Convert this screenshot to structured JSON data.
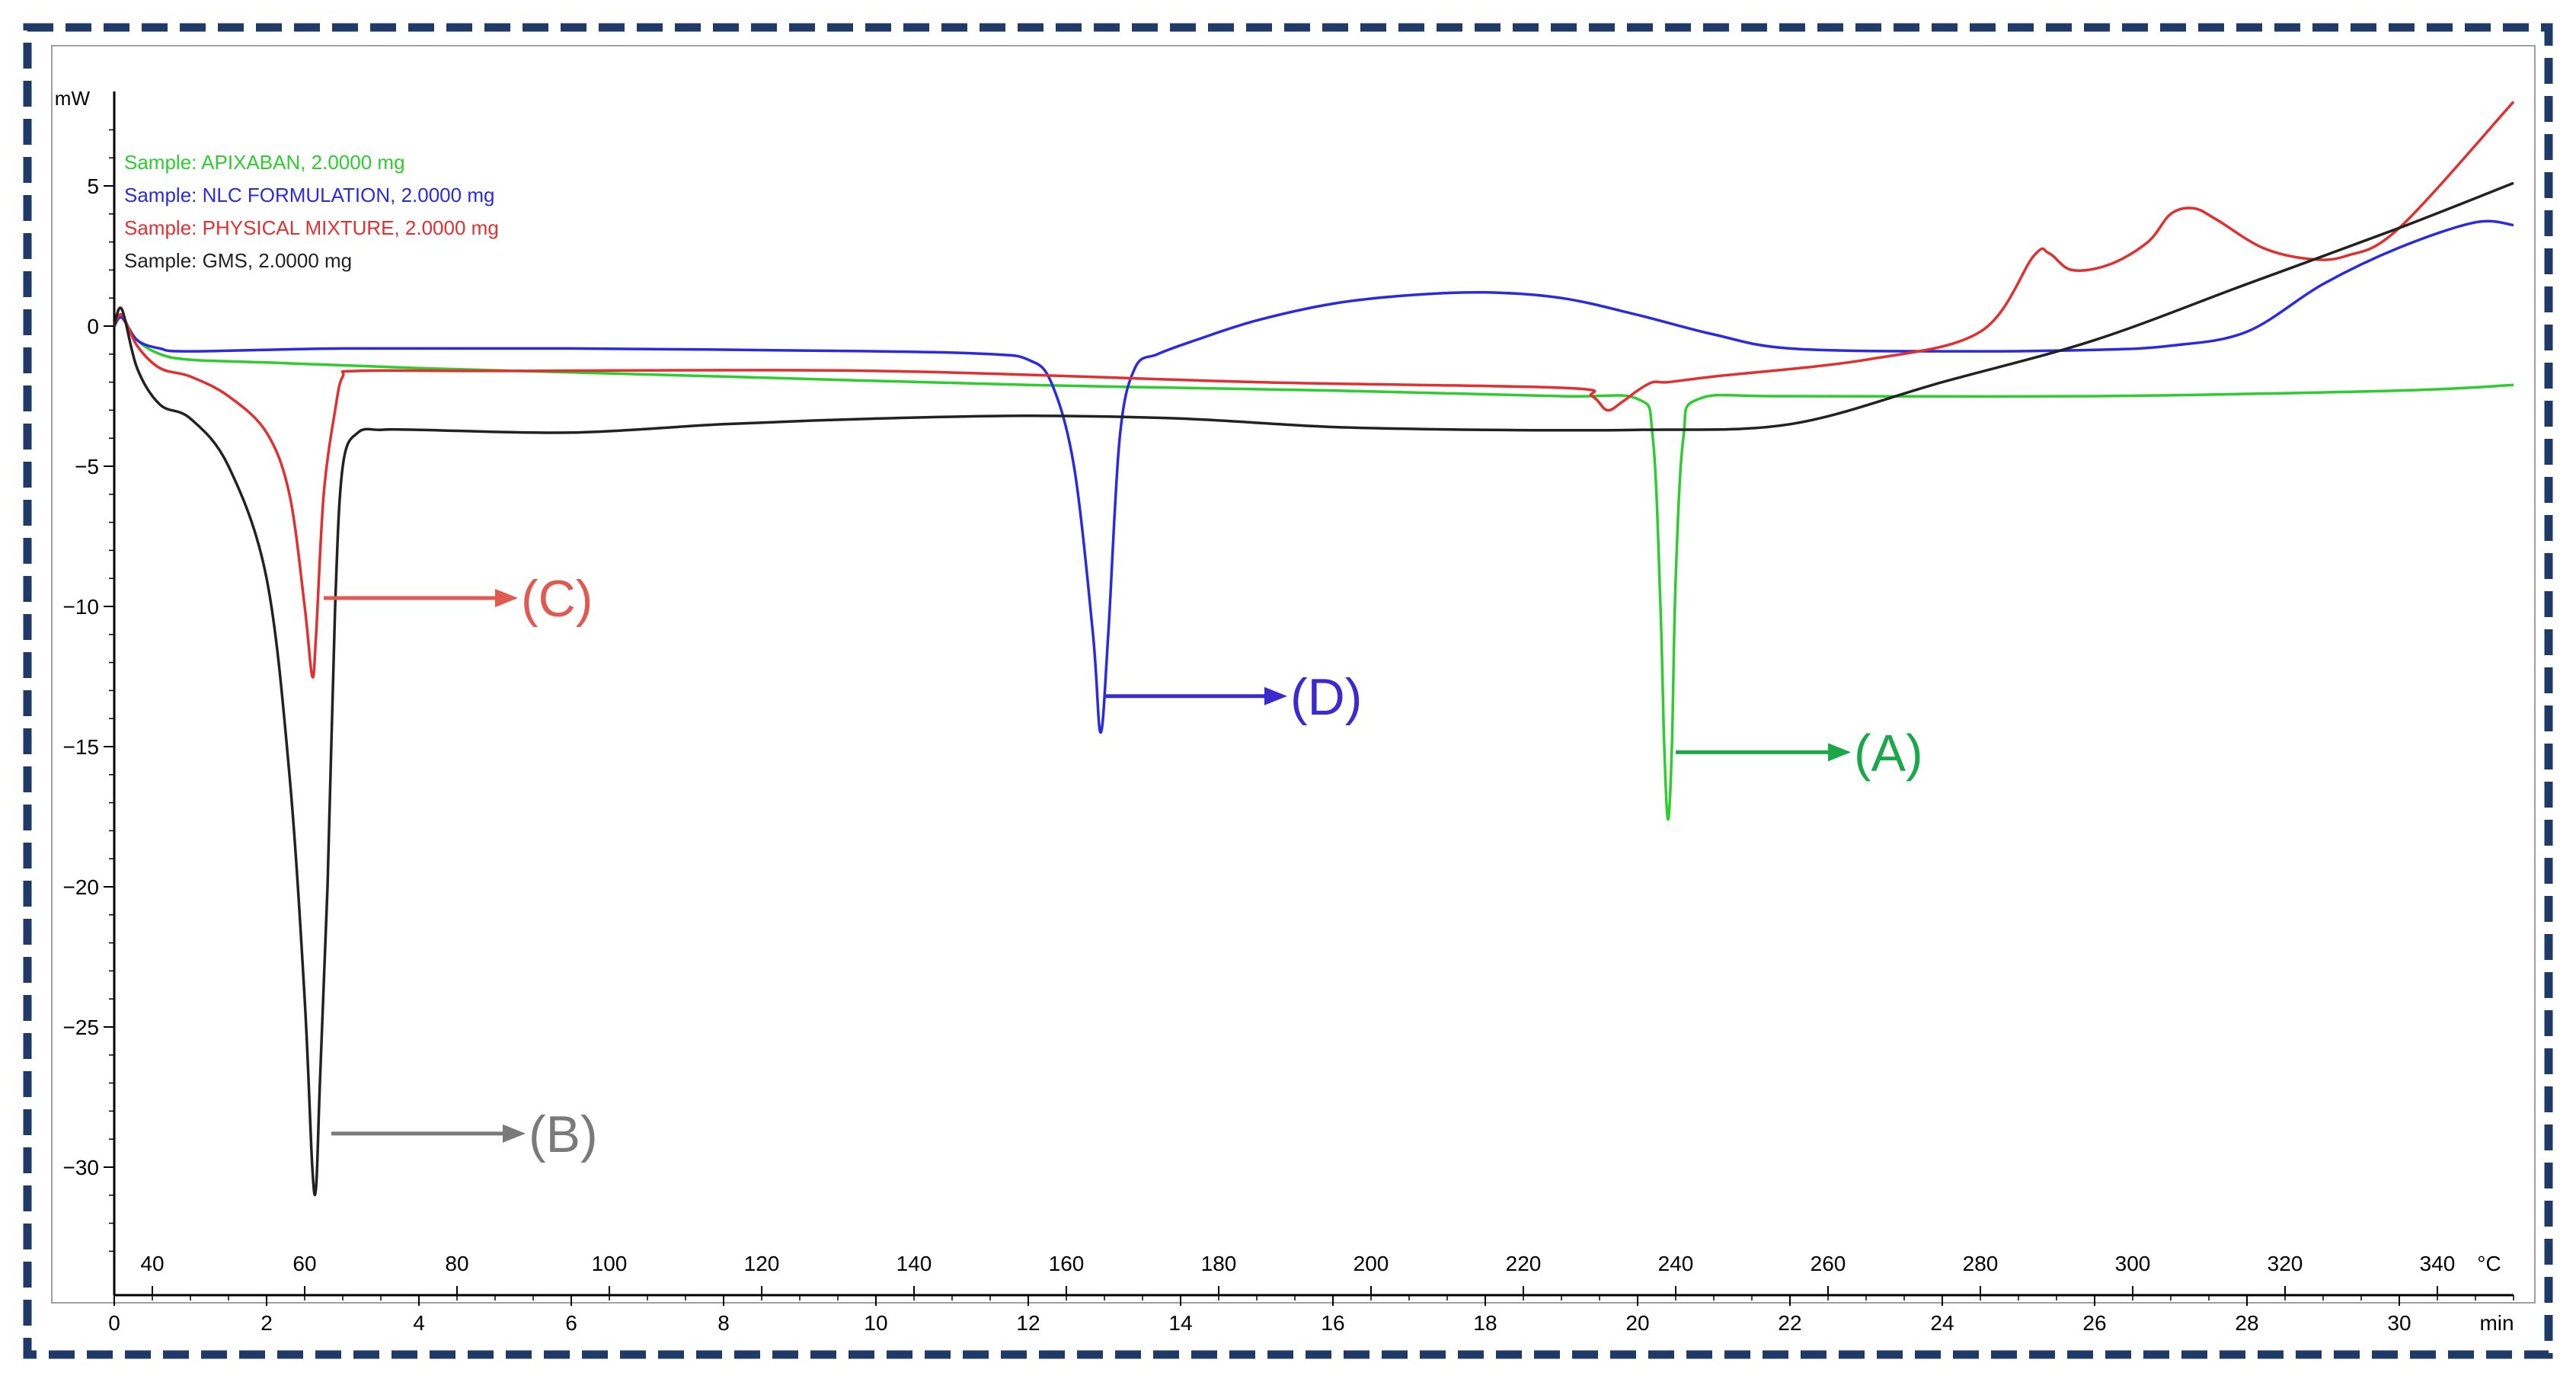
{
  "chart_data": {
    "type": "line",
    "y_axis": {
      "unit": "mW",
      "range": [
        -34,
        8
      ],
      "ticks": [
        5,
        0,
        -5,
        -10,
        -15,
        -20,
        -25,
        -30
      ],
      "tick_labels": [
        "5",
        "0",
        "−5",
        "−10",
        "−15",
        "−20",
        "−25",
        "−30"
      ]
    },
    "x_axis_time": {
      "unit": "min",
      "range": [
        0,
        31.5
      ],
      "ticks": [
        0,
        2,
        4,
        6,
        8,
        10,
        12,
        14,
        16,
        18,
        20,
        22,
        24,
        26,
        28,
        30
      ],
      "tick_labels": [
        "0",
        "2",
        "4",
        "6",
        "8",
        "10",
        "12",
        "14",
        "16",
        "18",
        "20",
        "22",
        "24",
        "26",
        "28",
        "30"
      ]
    },
    "x_axis_temperature": {
      "unit": "°C",
      "ticks": [
        40,
        60,
        80,
        100,
        120,
        140,
        160,
        180,
        200,
        220,
        240,
        260,
        280,
        300,
        320,
        340
      ],
      "tick_labels": [
        "40",
        "60",
        "80",
        "100",
        "120",
        "140",
        "160",
        "180",
        "200",
        "220",
        "240",
        "260",
        "280",
        "300",
        "320",
        "340"
      ]
    },
    "grid": false,
    "legend_placement": "top-left",
    "series": [
      {
        "name": "Sample: APIXABAN, 2.0000 mg",
        "color": "#2ecc2e",
        "x": [
          0,
          0.1,
          0.3,
          0.6,
          1,
          2,
          4,
          8,
          12,
          16,
          19,
          20,
          20.2,
          20.3,
          20.35,
          20.4,
          20.45,
          20.5,
          20.6,
          20.8,
          22,
          26,
          30,
          31.5
        ],
        "y": [
          0,
          0.3,
          -0.5,
          -1,
          -1.2,
          -1.3,
          -1.5,
          -1.8,
          -2.1,
          -2.3,
          -2.5,
          -2.6,
          -4,
          -10,
          -15,
          -17.6,
          -15,
          -9,
          -4,
          -2.6,
          -2.5,
          -2.5,
          -2.3,
          -2.1
        ]
      },
      {
        "name": "Sample: NLC FORMULATION, 2.0000 mg",
        "color": "#2a2ae0",
        "x": [
          0,
          0.1,
          0.3,
          0.6,
          1,
          3,
          6,
          10,
          11.5,
          12,
          12.3,
          12.6,
          12.85,
          12.95,
          13.05,
          13.2,
          13.4,
          13.7,
          14.2,
          15,
          16,
          17,
          18,
          19,
          20,
          21,
          22,
          24,
          26,
          27,
          28,
          29,
          30,
          31,
          31.5
        ],
        "y": [
          0,
          0.3,
          -0.5,
          -0.8,
          -0.9,
          -0.8,
          -0.8,
          -0.9,
          -1.0,
          -1.2,
          -2.0,
          -5,
          -11,
          -14.5,
          -11,
          -4,
          -1.5,
          -1.0,
          -0.5,
          0.2,
          0.8,
          1.1,
          1.2,
          1.0,
          0.4,
          -0.3,
          -0.8,
          -0.9,
          -0.85,
          -0.7,
          -0.2,
          1.5,
          2.8,
          3.7,
          3.6
        ]
      },
      {
        "name": "Sample: PHYSICAL MIXTURE, 2.0000 mg",
        "color": "#e03030",
        "x": [
          0,
          0.1,
          0.3,
          0.6,
          1,
          1.5,
          2,
          2.3,
          2.5,
          2.6,
          2.65,
          2.75,
          2.9,
          3.0,
          3.2,
          5,
          10,
          15,
          19,
          19.4,
          19.6,
          19.8,
          20.0,
          20.2,
          20.4,
          21,
          23,
          24.5,
          25.2,
          25.4,
          25.7,
          26.2,
          26.7,
          27,
          27.3,
          27.6,
          28.2,
          28.8,
          29.3,
          30,
          31.5
        ],
        "y": [
          0,
          0.4,
          -0.7,
          -1.5,
          -1.8,
          -2.5,
          -3.8,
          -6,
          -10,
          -12.5,
          -11,
          -6,
          -3,
          -1.8,
          -1.6,
          -1.6,
          -1.6,
          -2.0,
          -2.2,
          -2.5,
          -3.0,
          -2.7,
          -2.3,
          -2.0,
          -2.0,
          -1.8,
          -1.2,
          -0.2,
          2.5,
          2.6,
          2.0,
          2.2,
          3.0,
          4.0,
          4.2,
          3.8,
          2.8,
          2.4,
          2.5,
          3.5,
          8.0
        ]
      },
      {
        "name": "Sample: GMS, 2.0000 mg",
        "color": "#222222",
        "x": [
          0,
          0.1,
          0.3,
          0.6,
          1,
          1.5,
          2,
          2.3,
          2.5,
          2.6,
          2.65,
          2.7,
          2.8,
          2.9,
          3.0,
          3.2,
          3.5,
          4,
          6,
          8,
          10,
          12,
          14,
          16,
          18,
          20,
          22,
          24,
          26,
          28,
          30,
          31.5
        ],
        "y": [
          0,
          0.6,
          -1.5,
          -2.8,
          -3.3,
          -5,
          -9,
          -16,
          -24,
          -30,
          -30.7,
          -27,
          -20,
          -10,
          -5,
          -3.8,
          -3.7,
          -3.7,
          -3.8,
          -3.5,
          -3.3,
          -3.2,
          -3.3,
          -3.6,
          -3.7,
          -3.7,
          -3.5,
          -2.0,
          -0.5,
          1.5,
          3.5,
          5.1
        ]
      }
    ],
    "annotations": [
      {
        "label": "(C)",
        "color": "#e05a50",
        "x_start": 2.75,
        "y": -9.7,
        "x_end": 5.3
      },
      {
        "label": "(D)",
        "color": "#3a2ad0",
        "x_start": 13.0,
        "y": -13.2,
        "x_end": 15.4
      },
      {
        "label": "(A)",
        "color": "#1aa84a",
        "x_start": 20.5,
        "y": -15.2,
        "x_end": 22.8
      },
      {
        "label": "(B)",
        "color": "#7a7a7a",
        "x_start": 2.85,
        "y": -28.8,
        "x_end": 5.4
      }
    ],
    "frame_color": "#1f3a66"
  }
}
